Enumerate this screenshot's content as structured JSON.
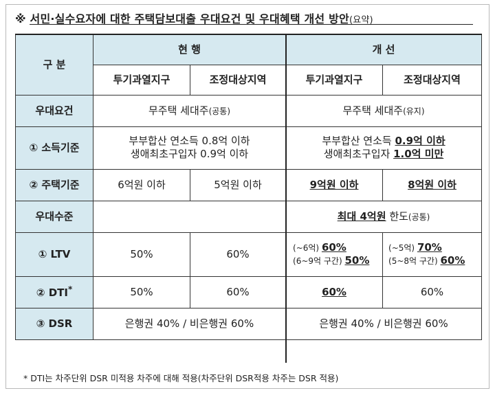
{
  "title": {
    "main": "※ 서민·실수요자에 대한 주택담보대출 우대요건 및 우대혜택 개선 방안",
    "suffix": "(요약)"
  },
  "header": {
    "category": "구  분",
    "current": "현  행",
    "improved": "개  선",
    "col_speculative": "투기과열지구",
    "col_adjusted": "조정대상지역"
  },
  "rows": {
    "condition": {
      "label": "우대요건",
      "current_text": "무주택 세대주",
      "current_note": "(공통)",
      "improved_text": "무주택 세대주",
      "improved_note": "(유지)"
    },
    "income": {
      "label": "① 소득기준",
      "current_line1": "부부합산 연소득 0.8억 이하",
      "current_line2": "생애최초구입자 0.9억 이하",
      "improved_line1_a": "부부합산 연소득 ",
      "improved_line1_b": "0.9억 이하",
      "improved_line2_a": "생애최초구입자 ",
      "improved_line2_b": "1.0억 미만"
    },
    "housing": {
      "label": "② 주택기준",
      "current_spec": "6억원 이하",
      "current_adj": "5억원 이하",
      "improved_spec": "9억원 이하",
      "improved_adj": "8억원 이하"
    },
    "level": {
      "label": "우대수준",
      "improved_a": "최대 4억원",
      "improved_b": " 한도",
      "improved_note": "(공통)"
    },
    "ltv": {
      "label": "① LTV",
      "current_spec": "50%",
      "current_adj": "60%",
      "improved_spec_l1_a": "(~6억) ",
      "improved_spec_l1_b": "60%",
      "improved_spec_l2_a": "(6~9억 구간) ",
      "improved_spec_l2_b": "50%",
      "improved_adj_l1_a": "(~5억) ",
      "improved_adj_l1_b": "70%",
      "improved_adj_l2_a": "(5~8억 구간) ",
      "improved_adj_l2_b": "60%"
    },
    "dti": {
      "label": "② DTI",
      "label_mark": "*",
      "current_spec": "50%",
      "current_adj": "60%",
      "improved_spec": "60%",
      "improved_adj": "60%"
    },
    "dsr": {
      "label": "③ DSR",
      "current": "은행권 40% / 비은행권 60%",
      "improved": "은행권 40% / 비은행권 60%"
    }
  },
  "footnote": "* DTI는 차주단위 DSR 미적용 차주에 대해 적용(차주단위 DSR적용 차주는 DSR 적용)"
}
